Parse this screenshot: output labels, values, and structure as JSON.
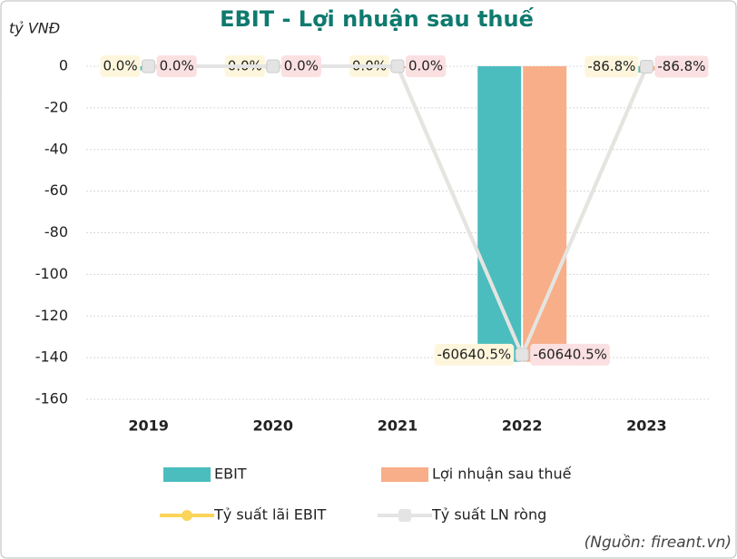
{
  "chart_data": {
    "type": "bar",
    "title": "EBIT - Lợi nhuận sau thuế",
    "y_label": "tỷ VNĐ",
    "source": "(Nguồn: fireant.vn)",
    "categories": [
      "2019",
      "2020",
      "2021",
      "2022",
      "2023"
    ],
    "ylim": [
      -160,
      0
    ],
    "yticks": [
      0,
      -20,
      -40,
      -60,
      -80,
      -100,
      -120,
      -140,
      -160
    ],
    "y2lim": [
      -70000,
      0
    ],
    "grid": true,
    "series": [
      {
        "name": "EBIT",
        "type": "bar",
        "color": "#4bbdbf",
        "values": [
          -2,
          -1,
          -1,
          -142,
          -3
        ]
      },
      {
        "name": "Lợi nhuận sau thuế",
        "type": "bar",
        "color": "#f8ae88",
        "values": [
          -1,
          -1,
          -1,
          -142,
          -2
        ]
      },
      {
        "name": "Tỷ suất lãi EBIT",
        "type": "line",
        "axis": "y2",
        "color": "#fbd45a",
        "label_bg": "#fdf6dc",
        "values": [
          0.0,
          0.0,
          0.0,
          -60640.5,
          -86.8
        ],
        "value_labels": [
          "0.0%",
          "0.0%",
          "0.0%",
          "-60640.5%",
          "-86.8%"
        ]
      },
      {
        "name": "Tỷ suất LN ròng",
        "type": "line",
        "axis": "y2",
        "color": "#e4e4e4",
        "label_bg": "#fbe0e2",
        "values": [
          0.0,
          0.0,
          0.0,
          -60640.5,
          -86.8
        ],
        "value_labels": [
          "0.0%",
          "0.0%",
          "0.0%",
          "-60640.5%",
          "-86.8%"
        ]
      }
    ]
  }
}
